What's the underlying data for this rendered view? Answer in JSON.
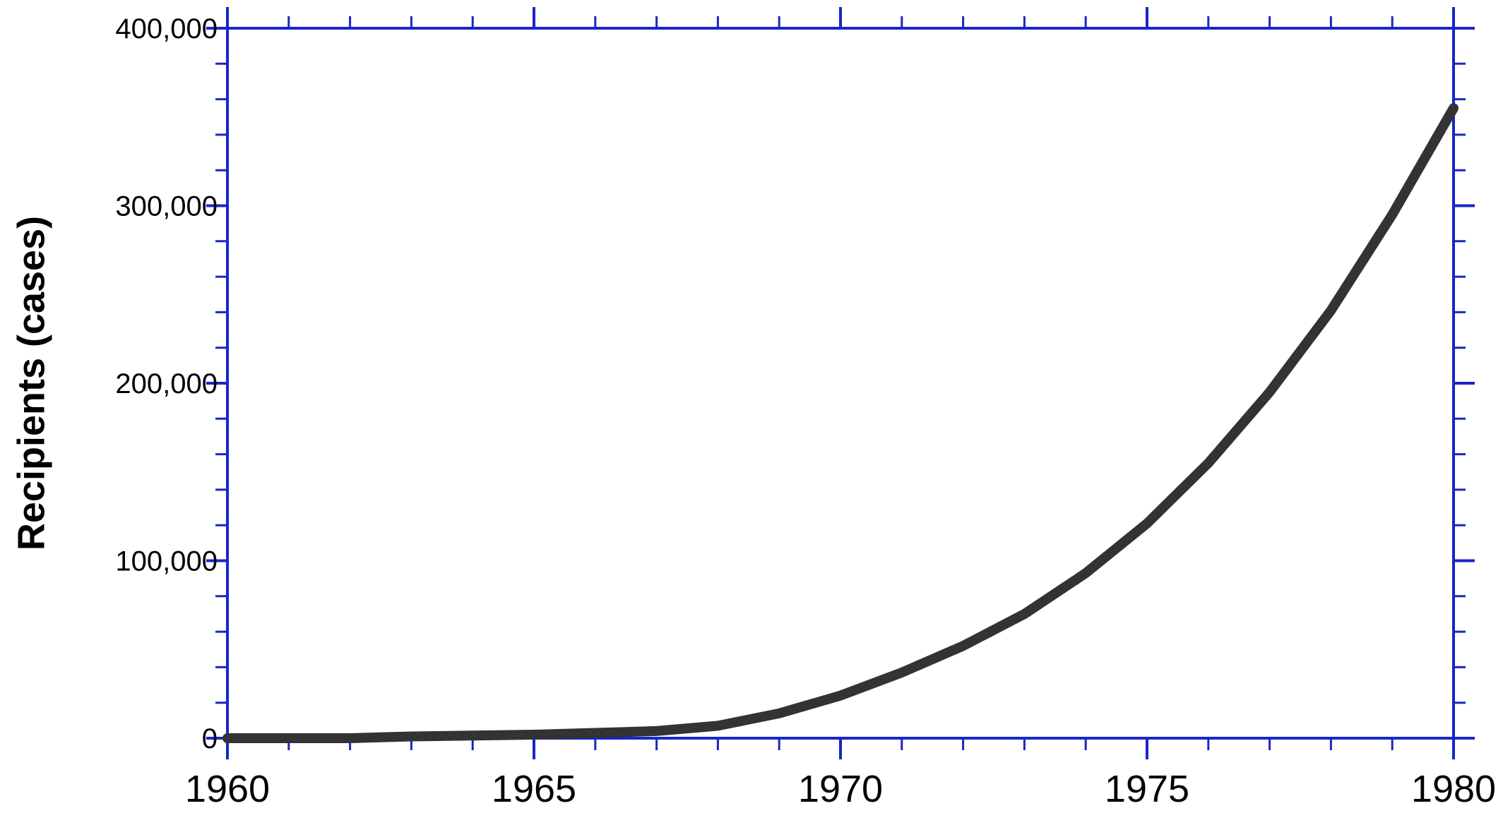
{
  "chart_data": {
    "type": "line",
    "title": "",
    "xlabel": "",
    "ylabel": "Recipients (cases)",
    "xlim": [
      1960,
      1980
    ],
    "ylim": [
      0,
      400000
    ],
    "x_ticks": [
      1960,
      1965,
      1970,
      1975,
      1980
    ],
    "x_tick_labels": [
      "1960",
      "1965",
      "1970",
      "1975",
      "1980"
    ],
    "y_ticks": [
      0,
      100000,
      200000,
      300000,
      400000
    ],
    "y_tick_labels": [
      "0",
      "100,000",
      "200,000",
      "300,000",
      "400,000"
    ],
    "grid": false,
    "legend": "none",
    "axis_color": "#1a26c8",
    "series": [
      {
        "color": "#333333",
        "x": [
          1960,
          1961,
          1962,
          1963,
          1964,
          1965,
          1966,
          1967,
          1968,
          1969,
          1970,
          1971,
          1972,
          1973,
          1974,
          1975,
          1976,
          1977,
          1978,
          1979,
          1980
        ],
        "y": [
          0,
          0,
          0,
          1000,
          1500,
          2000,
          3000,
          4000,
          7000,
          14000,
          24000,
          37000,
          52000,
          70000,
          93000,
          121000,
          155000,
          195000,
          241000,
          295000,
          355000
        ]
      }
    ]
  }
}
